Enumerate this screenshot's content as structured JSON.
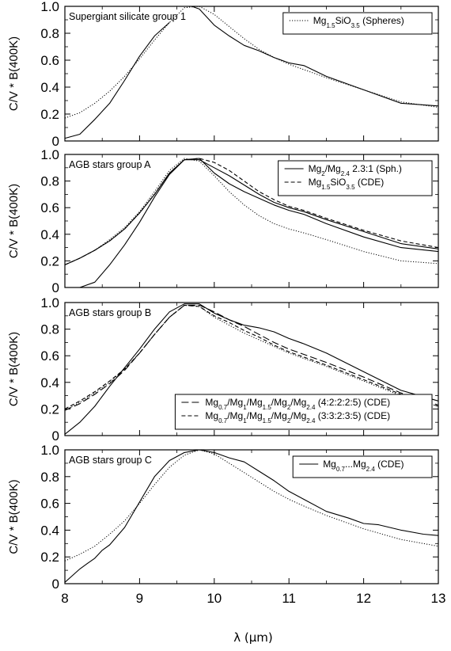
{
  "figure": {
    "xlabel": "λ (μm)"
  },
  "chart_data": [
    {
      "type": "line",
      "title": "Supergiant silicate group 1",
      "ylabel": "C/V * B(400K)",
      "xlim": [
        8,
        13
      ],
      "ylim": [
        0,
        1.0
      ],
      "xticks": [
        "8",
        "9",
        "10",
        "11",
        "12",
        "13"
      ],
      "yticks": [
        "0",
        "0.2",
        "0.4",
        "0.6",
        "0.8",
        "1.0"
      ],
      "legend_position": "top-right",
      "series": [
        {
          "name": "",
          "style": "solid",
          "x": [
            8.0,
            8.2,
            8.4,
            8.6,
            8.8,
            9.0,
            9.2,
            9.4
          ],
          "y": [
            0.02,
            0.05,
            0.16,
            0.28,
            0.45,
            0.63,
            0.78,
            0.88
          ]
        },
        {
          "name": "Mg1.5SiO3.5 (Spheres)",
          "name_parts": [
            [
              "Mg",
              "base"
            ],
            [
              "1.5",
              "sub"
            ],
            [
              "SiO",
              "base"
            ],
            [
              "3.5",
              "sub"
            ],
            [
              " (Spheres)",
              "base"
            ]
          ],
          "style": "dotted",
          "x": [
            8.0,
            8.2,
            8.4,
            8.6,
            8.8,
            9.0,
            9.2,
            9.4,
            9.6,
            9.8,
            10.0,
            10.2,
            10.4,
            10.6,
            10.8,
            11.0,
            11.2,
            11.5,
            12.0,
            12.5,
            13.0
          ],
          "y": [
            0.17,
            0.21,
            0.28,
            0.37,
            0.48,
            0.61,
            0.75,
            0.88,
            0.99,
            1.0,
            0.94,
            0.85,
            0.76,
            0.68,
            0.62,
            0.57,
            0.53,
            0.47,
            0.38,
            0.29,
            0.25
          ]
        },
        {
          "name": "",
          "style": "solid",
          "x": [
            9.7,
            9.8,
            9.9,
            10.0,
            10.2,
            10.4,
            10.6,
            10.8,
            11.0,
            11.2,
            11.5,
            12.0,
            12.5,
            13.0
          ],
          "y": [
            1.0,
            0.98,
            0.92,
            0.86,
            0.78,
            0.71,
            0.67,
            0.62,
            0.58,
            0.56,
            0.48,
            0.38,
            0.28,
            0.26
          ]
        }
      ]
    },
    {
      "type": "line",
      "title": "AGB stars group A",
      "ylabel": "C/V * B(400K)",
      "xlim": [
        8,
        13
      ],
      "ylim": [
        0,
        1.0
      ],
      "xticks": [
        "8",
        "9",
        "10",
        "11",
        "12",
        "13"
      ],
      "yticks": [
        "0",
        "0.2",
        "0.4",
        "0.6",
        "0.8",
        "1.0"
      ],
      "legend_position": "top-right",
      "series": [
        {
          "name": "",
          "style": "solid",
          "x": [
            8.2,
            8.4,
            8.6,
            8.8,
            9.0,
            9.2,
            9.4,
            9.6,
            9.8,
            10.0,
            10.2,
            10.4,
            10.6,
            10.8,
            11.0,
            11.2,
            11.5,
            12.0,
            12.5,
            13.0
          ],
          "y": [
            0.0,
            0.04,
            0.17,
            0.32,
            0.49,
            0.68,
            0.85,
            0.96,
            0.97,
            0.86,
            0.78,
            0.72,
            0.67,
            0.62,
            0.58,
            0.55,
            0.48,
            0.38,
            0.3,
            0.27
          ]
        },
        {
          "name": "Mg2/Mg2.4 2.3:1 (Sph.)",
          "name_parts": [
            [
              "Mg",
              "base"
            ],
            [
              "2",
              "sub"
            ],
            [
              "/Mg",
              "base"
            ],
            [
              "2.4",
              "sub"
            ],
            [
              " 2.3:1 (Sph.)",
              "base"
            ]
          ],
          "style": "solid",
          "x": [
            8.0,
            8.2,
            8.4,
            8.6,
            8.8,
            9.0,
            9.2,
            9.4,
            9.6,
            9.8,
            10.0,
            10.2,
            10.4,
            10.6,
            10.8,
            11.0,
            11.2,
            11.5,
            12.0,
            12.5,
            13.0
          ],
          "y": [
            0.17,
            0.22,
            0.28,
            0.35,
            0.44,
            0.56,
            0.7,
            0.86,
            0.96,
            0.96,
            0.9,
            0.84,
            0.77,
            0.7,
            0.64,
            0.6,
            0.57,
            0.51,
            0.42,
            0.33,
            0.29
          ]
        },
        {
          "name": "Mg1.5SiO3.5 (CDE)",
          "name_parts": [
            [
              "Mg",
              "base"
            ],
            [
              "1.5",
              "sub"
            ],
            [
              "SiO",
              "base"
            ],
            [
              "3.5",
              "sub"
            ],
            [
              " (CDE)",
              "base"
            ]
          ],
          "style": "dashed",
          "x": [
            8.0,
            8.2,
            8.4,
            8.6,
            8.8,
            9.0,
            9.2,
            9.4,
            9.6,
            9.8,
            10.0,
            10.2,
            10.4,
            10.6,
            10.8,
            11.0,
            11.2,
            11.5,
            12.0,
            12.5,
            13.0
          ],
          "y": [
            0.17,
            0.22,
            0.28,
            0.35,
            0.44,
            0.56,
            0.7,
            0.86,
            0.96,
            0.97,
            0.94,
            0.88,
            0.8,
            0.72,
            0.66,
            0.61,
            0.58,
            0.52,
            0.43,
            0.35,
            0.3
          ]
        },
        {
          "name": "",
          "style": "dotted",
          "x": [
            8.0,
            8.2,
            8.4,
            8.6,
            8.8,
            9.0,
            9.2,
            9.4,
            9.6,
            9.8,
            10.0,
            10.2,
            10.4,
            10.6,
            10.8,
            11.0,
            11.2,
            11.5,
            12.0,
            12.5,
            13.0
          ],
          "y": [
            0.17,
            0.22,
            0.28,
            0.36,
            0.45,
            0.57,
            0.72,
            0.88,
            0.97,
            0.95,
            0.84,
            0.72,
            0.62,
            0.54,
            0.48,
            0.44,
            0.41,
            0.36,
            0.27,
            0.2,
            0.18
          ]
        }
      ]
    },
    {
      "type": "line",
      "title": "AGB stars group B",
      "ylabel": "C/V * B(400K)",
      "xlim": [
        8,
        13
      ],
      "ylim": [
        0,
        1.0
      ],
      "xticks": [
        "8",
        "9",
        "10",
        "11",
        "12",
        "13"
      ],
      "yticks": [
        "0",
        "0.2",
        "0.4",
        "0.6",
        "0.8",
        "1.0"
      ],
      "legend_position": "bottom-right",
      "series": [
        {
          "name": "",
          "style": "solid",
          "x": [
            8.0,
            8.2,
            8.4,
            8.6,
            8.8,
            9.0,
            9.2,
            9.4,
            9.6,
            9.8,
            10.0,
            10.2,
            10.4,
            10.6,
            10.8,
            11.0,
            11.2,
            11.5,
            12.0,
            12.5,
            13.0
          ],
          "y": [
            0.01,
            0.1,
            0.22,
            0.37,
            0.51,
            0.65,
            0.8,
            0.93,
            0.99,
            0.99,
            0.92,
            0.87,
            0.83,
            0.81,
            0.78,
            0.73,
            0.69,
            0.62,
            0.48,
            0.34,
            0.26
          ]
        },
        {
          "name": "Mg0.7/Mg1/Mg1.5/Mg2/Mg2.4 (4:2:2:2:5) (CDE)",
          "name_parts": [
            [
              "Mg",
              "base"
            ],
            [
              "0.7",
              "sub"
            ],
            [
              "/Mg",
              "base"
            ],
            [
              "1",
              "sub"
            ],
            [
              "/Mg",
              "base"
            ],
            [
              "1.5",
              "sub"
            ],
            [
              "/Mg",
              "base"
            ],
            [
              "2",
              "sub"
            ],
            [
              "/Mg",
              "base"
            ],
            [
              "2.4",
              "sub"
            ],
            [
              " (4:2:2:2:5) (CDE)",
              "base"
            ]
          ],
          "style": "longdash",
          "x": [
            8.0,
            8.2,
            8.4,
            8.6,
            8.8,
            9.0,
            9.2,
            9.4,
            9.6,
            9.8,
            10.0,
            10.2,
            10.4,
            10.6,
            10.8,
            11.0,
            11.2,
            11.5,
            12.0,
            12.5,
            13.0
          ],
          "y": [
            0.19,
            0.24,
            0.31,
            0.39,
            0.49,
            0.62,
            0.76,
            0.89,
            0.98,
            0.98,
            0.93,
            0.87,
            0.82,
            0.76,
            0.7,
            0.65,
            0.61,
            0.55,
            0.44,
            0.32,
            0.23
          ]
        },
        {
          "name": "Mg0.7/Mg1/Mg1.5/Mg2/Mg2.4 (3:3:2:3:5) (CDE)",
          "name_parts": [
            [
              "Mg",
              "base"
            ],
            [
              "0.7",
              "sub"
            ],
            [
              "/Mg",
              "base"
            ],
            [
              "1",
              "sub"
            ],
            [
              "/Mg",
              "base"
            ],
            [
              "1.5",
              "sub"
            ],
            [
              "/Mg",
              "base"
            ],
            [
              "2",
              "sub"
            ],
            [
              "/Mg",
              "base"
            ],
            [
              "2.4",
              "sub"
            ],
            [
              " (3:3:2:3:5) (CDE)",
              "base"
            ]
          ],
          "style": "dashed",
          "x": [
            8.0,
            8.2,
            8.4,
            8.6,
            8.8,
            9.0,
            9.2,
            9.4,
            9.6,
            9.8,
            10.0,
            10.2,
            10.4,
            10.6,
            10.8,
            11.0,
            11.2,
            11.5,
            12.0,
            12.5,
            13.0
          ],
          "y": [
            0.2,
            0.26,
            0.33,
            0.41,
            0.5,
            0.62,
            0.76,
            0.89,
            0.98,
            0.97,
            0.9,
            0.85,
            0.79,
            0.74,
            0.68,
            0.63,
            0.59,
            0.53,
            0.42,
            0.31,
            0.22
          ]
        },
        {
          "name": "",
          "style": "dotted",
          "x": [
            8.0,
            8.2,
            8.4,
            8.6,
            8.8,
            9.0,
            9.2,
            9.4,
            9.6,
            9.8,
            10.0,
            10.2,
            10.4,
            10.6,
            10.8,
            11.0,
            11.2,
            11.5,
            12.0,
            12.5,
            13.0
          ],
          "y": [
            0.19,
            0.25,
            0.32,
            0.4,
            0.5,
            0.62,
            0.76,
            0.89,
            0.98,
            0.97,
            0.89,
            0.83,
            0.77,
            0.72,
            0.67,
            0.62,
            0.58,
            0.52,
            0.41,
            0.3,
            0.22
          ]
        }
      ]
    },
    {
      "type": "line",
      "title": "AGB stars group C",
      "ylabel": "C/V * B(400K)",
      "xlim": [
        8,
        13
      ],
      "ylim": [
        0,
        1.0
      ],
      "xticks": [
        "8",
        "9",
        "10",
        "11",
        "12",
        "13"
      ],
      "yticks": [
        "0",
        "0.2",
        "0.4",
        "0.6",
        "0.8",
        "1.0"
      ],
      "legend_position": "top-right",
      "series": [
        {
          "name": "Mg0.7...Mg2.4 (CDE)",
          "name_parts": [
            [
              "Mg",
              "base"
            ],
            [
              "0.7",
              "sub"
            ],
            [
              "...Mg",
              "base"
            ],
            [
              "2.4",
              "sub"
            ],
            [
              " (CDE)",
              "base"
            ]
          ],
          "style": "solid",
          "x": [
            8.0,
            8.1,
            8.2,
            8.3,
            8.4,
            8.5,
            8.6,
            8.8,
            9.0,
            9.2,
            9.4,
            9.6,
            9.8,
            10.0,
            10.2,
            10.4,
            10.6,
            10.8,
            11.0,
            11.2,
            11.5,
            11.8,
            12.0,
            12.2,
            12.5,
            12.8,
            13.0
          ],
          "y": [
            0.01,
            0.06,
            0.11,
            0.15,
            0.19,
            0.25,
            0.29,
            0.42,
            0.61,
            0.8,
            0.92,
            0.98,
            1.0,
            0.98,
            0.94,
            0.91,
            0.84,
            0.77,
            0.69,
            0.63,
            0.54,
            0.49,
            0.45,
            0.44,
            0.4,
            0.37,
            0.36
          ]
        },
        {
          "name": "",
          "style": "dotted",
          "x": [
            8.0,
            8.2,
            8.4,
            8.6,
            8.8,
            9.0,
            9.2,
            9.4,
            9.6,
            9.8,
            10.0,
            10.2,
            10.4,
            10.6,
            10.8,
            11.0,
            11.2,
            11.5,
            12.0,
            12.5,
            13.0
          ],
          "y": [
            0.17,
            0.22,
            0.28,
            0.37,
            0.47,
            0.6,
            0.74,
            0.87,
            0.96,
            1.0,
            0.97,
            0.9,
            0.83,
            0.76,
            0.69,
            0.63,
            0.58,
            0.51,
            0.41,
            0.33,
            0.28
          ]
        }
      ]
    }
  ]
}
